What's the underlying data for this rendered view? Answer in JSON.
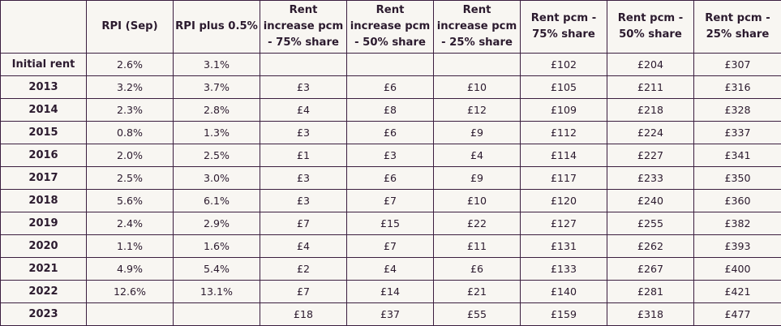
{
  "table": {
    "headers": [
      "",
      "RPI (Sep)",
      "RPI plus 0.5%",
      "Rent increase pcm - 75% share",
      "Rent increase pcm - 50% share",
      "Rent increase pcm - 25% share",
      "Rent pcm - 75% share",
      "Rent pcm - 50% share",
      "Rent pcm - 25% share"
    ],
    "rows": [
      [
        "Initial rent",
        "2.6%",
        "3.1%",
        "",
        "",
        "",
        "£102",
        "£204",
        "£307"
      ],
      [
        "2013",
        "3.2%",
        "3.7%",
        "£3",
        "£6",
        "£10",
        "£105",
        "£211",
        "£316"
      ],
      [
        "2014",
        "2.3%",
        "2.8%",
        "£4",
        "£8",
        "£12",
        "£109",
        "£218",
        "£328"
      ],
      [
        "2015",
        "0.8%",
        "1.3%",
        "£3",
        "£6",
        "£9",
        "£112",
        "£224",
        "£337"
      ],
      [
        "2016",
        "2.0%",
        "2.5%",
        "£1",
        "£3",
        "£4",
        "£114",
        "£227",
        "£341"
      ],
      [
        "2017",
        "2.5%",
        "3.0%",
        "£3",
        "£6",
        "£9",
        "£117",
        "£233",
        "£350"
      ],
      [
        "2018",
        "5.6%",
        "6.1%",
        "£3",
        "£7",
        "£10",
        "£120",
        "£240",
        "£360"
      ],
      [
        "2019",
        "2.4%",
        "2.9%",
        "£7",
        "£15",
        "£22",
        "£127",
        "£255",
        "£382"
      ],
      [
        "2020",
        "1.1%",
        "1.6%",
        "£4",
        "£7",
        "£11",
        "£131",
        "£262",
        "£393"
      ],
      [
        "2021",
        "4.9%",
        "5.4%",
        "£2",
        "£4",
        "£6",
        "£133",
        "£267",
        "£400"
      ],
      [
        "2022",
        "12.6%",
        "13.1%",
        "£7",
        "£14",
        "£21",
        "£140",
        "£281",
        "£421"
      ],
      [
        "2023",
        "",
        "",
        "£18",
        "£37",
        "£55",
        "£159",
        "£318",
        "£477"
      ]
    ]
  }
}
